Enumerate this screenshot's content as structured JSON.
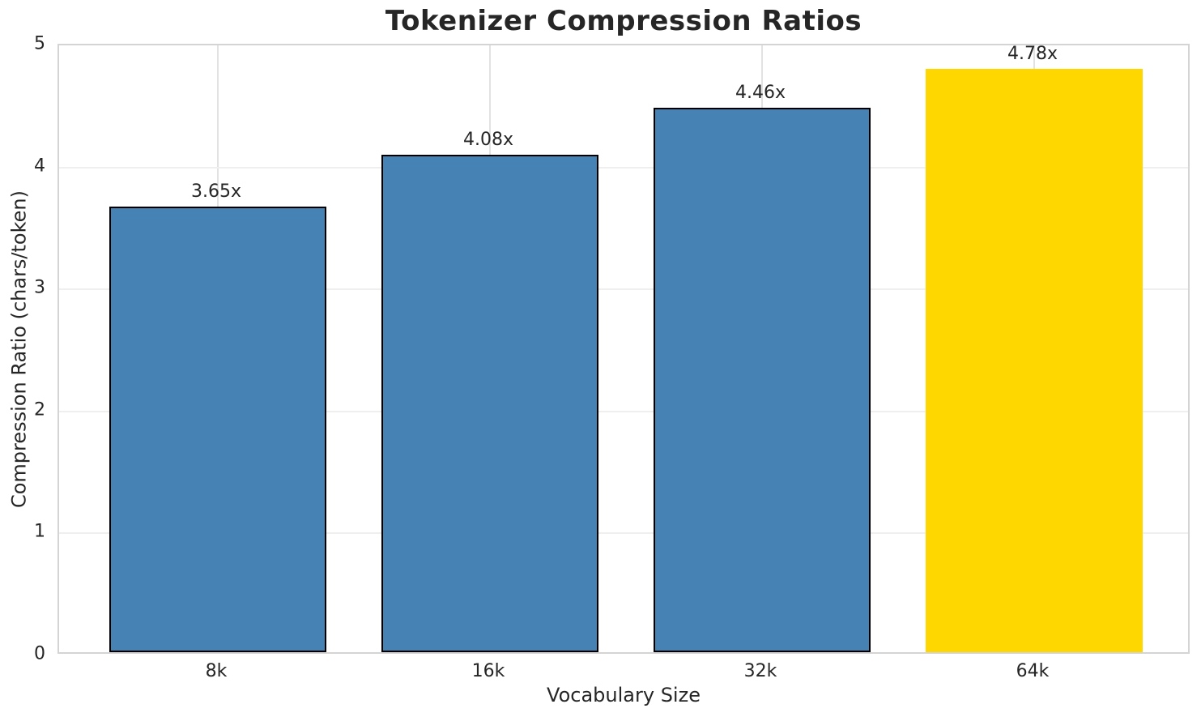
{
  "chart_data": {
    "type": "bar",
    "title": "Tokenizer Compression Ratios",
    "xlabel": "Vocabulary Size",
    "ylabel": "Compression Ratio (chars/token)",
    "categories": [
      "8k",
      "16k",
      "32k",
      "64k"
    ],
    "values": [
      3.65,
      4.08,
      4.46,
      4.78
    ],
    "value_labels": [
      "3.65x",
      "4.08x",
      "4.46x",
      "4.78x"
    ],
    "ylim": [
      0,
      5
    ],
    "yticks": [
      0,
      1,
      2,
      3,
      4,
      5
    ],
    "grid": true,
    "legend": "none",
    "bar_colors": [
      "#4682B4",
      "#4682B4",
      "#4682B4",
      "#FFD700"
    ],
    "bar_edge_colors": [
      "#000000",
      "#000000",
      "#000000",
      "none"
    ]
  },
  "colors": {
    "background": "#ffffff",
    "bar_default": "#4682B4",
    "bar_highlight": "#FFD700",
    "bar_edge": "#000000",
    "grid_horizontal": "#efefef",
    "grid_vertical": "#e2e2e2",
    "spine": "#d4d4d4",
    "text": "#262626"
  }
}
